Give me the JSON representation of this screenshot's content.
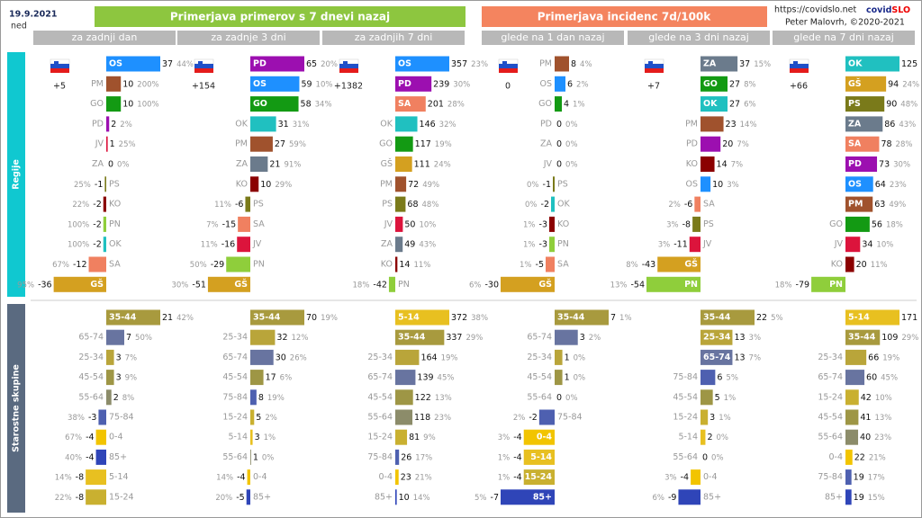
{
  "header": {
    "date": "19.9.2021",
    "day": "ned",
    "group_titles": [
      "Primerjava primerov s 7 dnevi nazaj",
      "Primerjava incidenc 7d/100k"
    ],
    "url": "https://covidslo.net",
    "brand": [
      "covid",
      "SLO"
    ],
    "author": "Peter Malovrh, ©2020-2021"
  },
  "section_labels": [
    "Regije",
    "Starostne skupine"
  ],
  "region_colors": {
    "OS": "#1e90ff",
    "PM": "#a0522d",
    "GO": "#139a13",
    "PD": "#9c0fb0",
    "JV": "#dc143c",
    "ZA": "#6b7b8c",
    "PS": "#7a7a1a",
    "KO": "#8b0000",
    "PN": "#8fce3b",
    "OK": "#20c0c0",
    "SA": "#f08060",
    "GŠ": "#d4a020"
  },
  "age_colors": {
    "0-4": "#f2c400",
    "5-14": "#e8c020",
    "15-24": "#c9b030",
    "25-34": "#b9a53a",
    "35-44": "#a89a3e",
    "45-54": "#9e9645",
    "55-64": "#8c8c6a",
    "65-74": "#6874a0",
    "75-84": "#4e60b0",
    "85+": "#2f45b8"
  },
  "columns": [
    {
      "header": "za zadnji dan",
      "total": "+5",
      "regions": {
        "categories": [
          "OS",
          "PM",
          "GO",
          "PD",
          "JV",
          "ZA",
          "PS",
          "KO",
          "PN",
          "OK",
          "SA",
          "GŠ"
        ],
        "values": [
          37,
          10,
          10,
          2,
          1,
          0,
          -1,
          -2,
          -2,
          -2,
          -12,
          -36
        ],
        "percents": [
          "44%",
          "200%",
          "100%",
          "2%",
          "25%",
          "0%",
          "25%",
          "22%",
          "100%",
          "100%",
          "67%",
          "95%"
        ]
      },
      "ages": {
        "categories": [
          "35-44",
          "65-74",
          "25-34",
          "45-54",
          "55-64",
          "75-84",
          "0-4",
          "85+",
          "5-14",
          "15-24"
        ],
        "values": [
          21,
          7,
          3,
          3,
          2,
          -3,
          -4,
          -4,
          -8,
          -8
        ],
        "percents": [
          "42%",
          "50%",
          "7%",
          "9%",
          "8%",
          "38%",
          "67%",
          "40%",
          "14%",
          "22%"
        ]
      }
    },
    {
      "header": "za zadnje 3 dni",
      "total": "+154",
      "regions": {
        "categories": [
          "PD",
          "OS",
          "GO",
          "OK",
          "PM",
          "ZA",
          "KO",
          "PS",
          "SA",
          "JV",
          "PN",
          "GŠ"
        ],
        "values": [
          65,
          59,
          58,
          31,
          27,
          21,
          10,
          -6,
          -15,
          -16,
          -29,
          -51
        ],
        "percents": [
          "20%",
          "10%",
          "34%",
          "31%",
          "59%",
          "91%",
          "29%",
          "11%",
          "7%",
          "11%",
          "50%",
          "30%"
        ]
      },
      "ages": {
        "categories": [
          "35-44",
          "25-34",
          "65-74",
          "45-54",
          "75-84",
          "15-24",
          "5-14",
          "55-64",
          "0-4",
          "85+"
        ],
        "values": [
          70,
          32,
          30,
          17,
          8,
          5,
          3,
          1,
          -4,
          -5
        ],
        "percents": [
          "19%",
          "12%",
          "26%",
          "6%",
          "19%",
          "2%",
          "1%",
          "0%",
          "14%",
          "20%"
        ]
      }
    },
    {
      "header": "za zadnjih 7 dni",
      "total": "+1382",
      "regions": {
        "categories": [
          "OS",
          "PD",
          "SA",
          "OK",
          "GO",
          "GŠ",
          "PM",
          "PS",
          "JV",
          "ZA",
          "KO",
          "PN"
        ],
        "values": [
          357,
          239,
          201,
          146,
          117,
          111,
          72,
          68,
          50,
          49,
          14,
          -42
        ],
        "percents": [
          "23%",
          "30%",
          "28%",
          "32%",
          "19%",
          "24%",
          "49%",
          "48%",
          "10%",
          "43%",
          "11%",
          "18%"
        ]
      },
      "ages": {
        "categories": [
          "5-14",
          "35-44",
          "25-34",
          "65-74",
          "45-54",
          "55-64",
          "15-24",
          "75-84",
          "0-4",
          "85+"
        ],
        "values": [
          372,
          337,
          164,
          139,
          122,
          118,
          81,
          26,
          23,
          10
        ],
        "percents": [
          "38%",
          "29%",
          "19%",
          "45%",
          "13%",
          "23%",
          "9%",
          "17%",
          "21%",
          "14%"
        ]
      }
    },
    {
      "header": "glede na 1 dan nazaj",
      "total": "0",
      "regions": {
        "categories": [
          "PM",
          "OS",
          "GO",
          "PD",
          "ZA",
          "JV",
          "PS",
          "OK",
          "KO",
          "PN",
          "SA",
          "GŠ"
        ],
        "values": [
          8,
          6,
          4,
          0,
          0,
          0,
          -1,
          -2,
          -3,
          -3,
          -5,
          -30
        ],
        "percents": [
          "4%",
          "2%",
          "1%",
          "0%",
          "0%",
          "0%",
          "0%",
          "0%",
          "1%",
          "1%",
          "1%",
          "6%"
        ]
      },
      "ages": {
        "categories": [
          "35-44",
          "65-74",
          "25-34",
          "45-54",
          "55-64",
          "75-84",
          "0-4",
          "5-14",
          "15-24",
          "85+"
        ],
        "values": [
          7,
          3,
          1,
          1,
          0,
          -2,
          -4,
          -4,
          -4,
          -7
        ],
        "percents": [
          "1%",
          "2%",
          "0%",
          "0%",
          "0%",
          "2%",
          "3%",
          "1%",
          "1%",
          "5%"
        ]
      }
    },
    {
      "header": "glede na 3 dni nazaj",
      "total": "+7",
      "regions": {
        "categories": [
          "ZA",
          "GO",
          "OK",
          "PM",
          "PD",
          "KO",
          "OS",
          "SA",
          "PS",
          "JV",
          "GŠ",
          "PN"
        ],
        "values": [
          37,
          27,
          27,
          23,
          20,
          14,
          10,
          -6,
          -8,
          -11,
          -43,
          -54
        ],
        "percents": [
          "15%",
          "8%",
          "6%",
          "14%",
          "7%",
          "7%",
          "3%",
          "2%",
          "3%",
          "3%",
          "8%",
          "13%"
        ]
      },
      "ages": {
        "categories": [
          "35-44",
          "25-34",
          "65-74",
          "75-84",
          "45-54",
          "15-24",
          "5-14",
          "55-64",
          "0-4",
          "85+"
        ],
        "values": [
          22,
          13,
          13,
          6,
          5,
          3,
          2,
          0,
          -4,
          -9
        ],
        "percents": [
          "5%",
          "3%",
          "7%",
          "5%",
          "1%",
          "1%",
          "0%",
          "0%",
          "3%",
          "6%"
        ]
      }
    },
    {
      "header": "glede na 7 dni nazaj",
      "total": "+66",
      "regions": {
        "categories": [
          "OK",
          "GŠ",
          "PS",
          "ZA",
          "SA",
          "PD",
          "OS",
          "PM",
          "GO",
          "JV",
          "KO",
          "PN"
        ],
        "values": [
          125,
          94,
          90,
          86,
          78,
          73,
          64,
          63,
          56,
          34,
          20,
          -79
        ],
        "percents": [
          "32%",
          "24%",
          "48%",
          "43%",
          "28%",
          "30%",
          "23%",
          "49%",
          "18%",
          "10%",
          "11%",
          "18%"
        ]
      },
      "ages": {
        "categories": [
          "5-14",
          "35-44",
          "25-34",
          "65-74",
          "15-24",
          "45-54",
          "55-64",
          "0-4",
          "75-84",
          "85+"
        ],
        "values": [
          171,
          109,
          66,
          60,
          42,
          41,
          40,
          22,
          19,
          19
        ],
        "percents": [
          "38%",
          "29%",
          "19%",
          "45%",
          "10%",
          "13%",
          "23%",
          "21%",
          "17%",
          "15%"
        ]
      }
    }
  ]
}
